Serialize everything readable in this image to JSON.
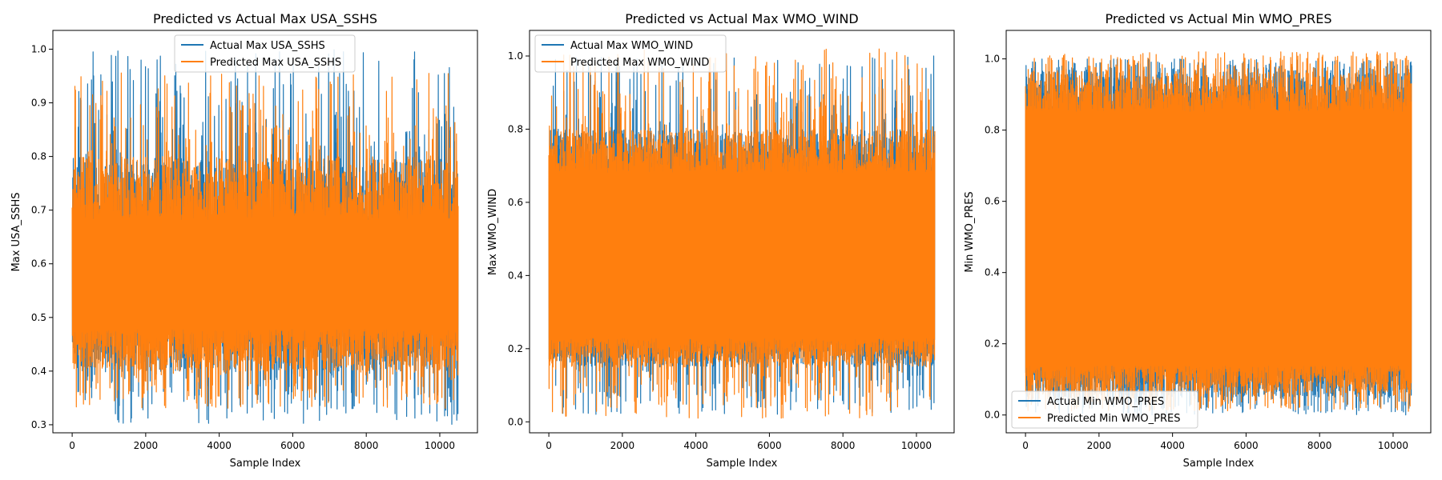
{
  "colors": {
    "actual": "#1f77b4",
    "predicted": "#ff7f0e",
    "axis": "#000000",
    "legend_edge": "#cccccc"
  },
  "chart_data": [
    {
      "type": "line",
      "title": "Predicted vs Actual Max USA_SSHS",
      "xlabel": "Sample Index",
      "ylabel": "Max USA_SSHS",
      "xlim": [
        -525,
        11025
      ],
      "ylim": [
        0.285,
        1.035
      ],
      "xticks": [
        0,
        2000,
        4000,
        6000,
        8000,
        10000
      ],
      "yticks": [
        0.3,
        0.4,
        0.5,
        0.6,
        0.7,
        0.8,
        0.9,
        1.0
      ],
      "legend_loc": "upper-center",
      "sample_count": 10500,
      "series": [
        {
          "name": "Actual Max USA_SSHS",
          "color": "#1f77b4",
          "min": 0.3,
          "max": 1.0,
          "typical_low": 0.4,
          "typical_high": 0.8
        },
        {
          "name": "Predicted Max USA_SSHS",
          "color": "#ff7f0e",
          "min": 0.33,
          "max": 0.96,
          "typical_low": 0.4,
          "typical_high": 0.8
        }
      ]
    },
    {
      "type": "line",
      "title": "Predicted vs Actual Max WMO_WIND",
      "xlabel": "Sample Index",
      "ylabel": "Max WMO_WIND",
      "xlim": [
        -525,
        11025
      ],
      "ylim": [
        -0.03,
        1.07
      ],
      "xticks": [
        0,
        2000,
        4000,
        6000,
        8000,
        10000
      ],
      "yticks": [
        0.0,
        0.2,
        0.4,
        0.6,
        0.8,
        1.0
      ],
      "legend_loc": "upper-left",
      "sample_count": 10500,
      "series": [
        {
          "name": "Actual Max WMO_WIND",
          "color": "#1f77b4",
          "min": 0.02,
          "max": 1.0,
          "typical_low": 0.15,
          "typical_high": 0.8
        },
        {
          "name": "Predicted Max WMO_WIND",
          "color": "#ff7f0e",
          "min": 0.01,
          "max": 1.02,
          "typical_low": 0.15,
          "typical_high": 0.8
        }
      ]
    },
    {
      "type": "line",
      "title": "Predicted vs Actual Min WMO_PRES",
      "xlabel": "Sample Index",
      "ylabel": "Min WMO_PRES",
      "xlim": [
        -525,
        11025
      ],
      "ylim": [
        -0.05,
        1.08
      ],
      "xticks": [
        0,
        2000,
        4000,
        6000,
        8000,
        10000
      ],
      "yticks": [
        0.0,
        0.2,
        0.4,
        0.6,
        0.8,
        1.0
      ],
      "legend_loc": "lower-left",
      "sample_count": 10500,
      "series": [
        {
          "name": "Actual Min WMO_PRES",
          "color": "#1f77b4",
          "min": 0.0,
          "max": 1.0,
          "typical_low": 0.05,
          "typical_high": 0.97
        },
        {
          "name": "Predicted Min WMO_PRES",
          "color": "#ff7f0e",
          "min": 0.01,
          "max": 1.02,
          "typical_low": 0.06,
          "typical_high": 0.97
        }
      ]
    }
  ]
}
